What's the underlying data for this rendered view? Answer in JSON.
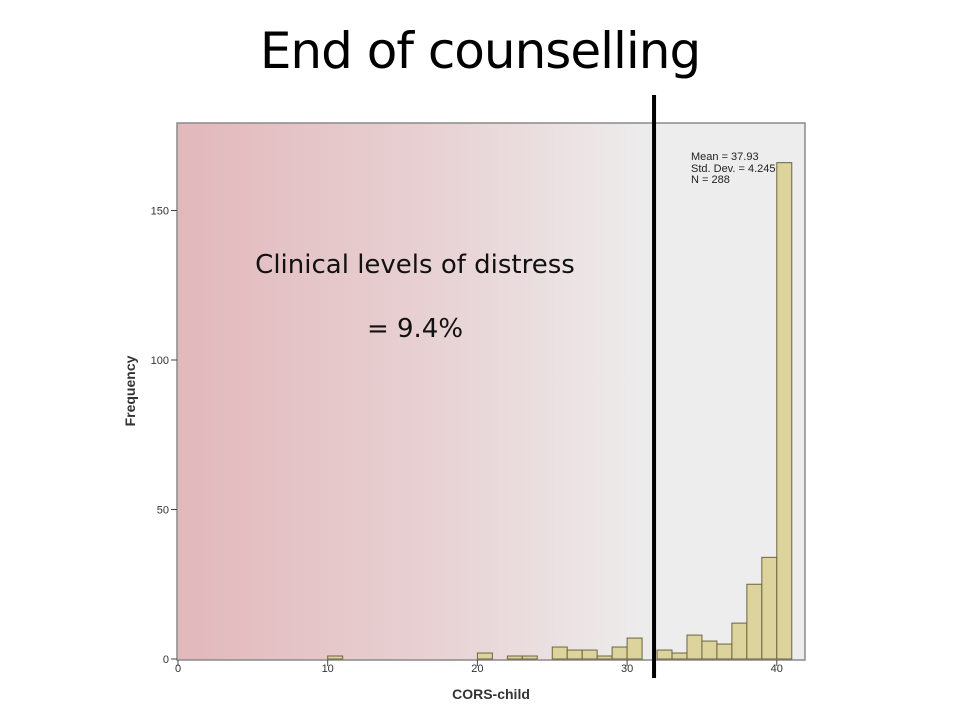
{
  "slide": {
    "title": "End of counselling",
    "annotation_line1": "Clinical levels of distress",
    "annotation_line2": "= 9.4%"
  },
  "chart_data": {
    "type": "bar",
    "xlabel": "CORS-child",
    "ylabel": "Frequency",
    "xlim": [
      0,
      42
    ],
    "ylim": [
      0,
      175
    ],
    "x_ticks": [
      0,
      10,
      20,
      30,
      40
    ],
    "y_ticks": [
      0,
      50,
      100,
      150
    ],
    "bin_width": 1,
    "x": [
      10,
      20,
      22,
      23,
      25,
      26,
      27,
      28,
      29,
      30,
      32,
      33,
      34,
      35,
      36,
      37,
      38,
      39,
      40
    ],
    "values": [
      1,
      2,
      1,
      1,
      4,
      3,
      3,
      1,
      4,
      7,
      3,
      2,
      8,
      6,
      5,
      12,
      25,
      34,
      166
    ],
    "stats": [
      "Mean = 37.93",
      "Std. Dev. = 4.245",
      "N = 288"
    ],
    "cutoff_x": 31.8,
    "clinical_region_color": "#e3b9bc",
    "bar_color": "#dcd49c",
    "bar_stroke": "#6b6440",
    "plot_bg": "#ededed",
    "cutoff_line_color": "#000000"
  }
}
